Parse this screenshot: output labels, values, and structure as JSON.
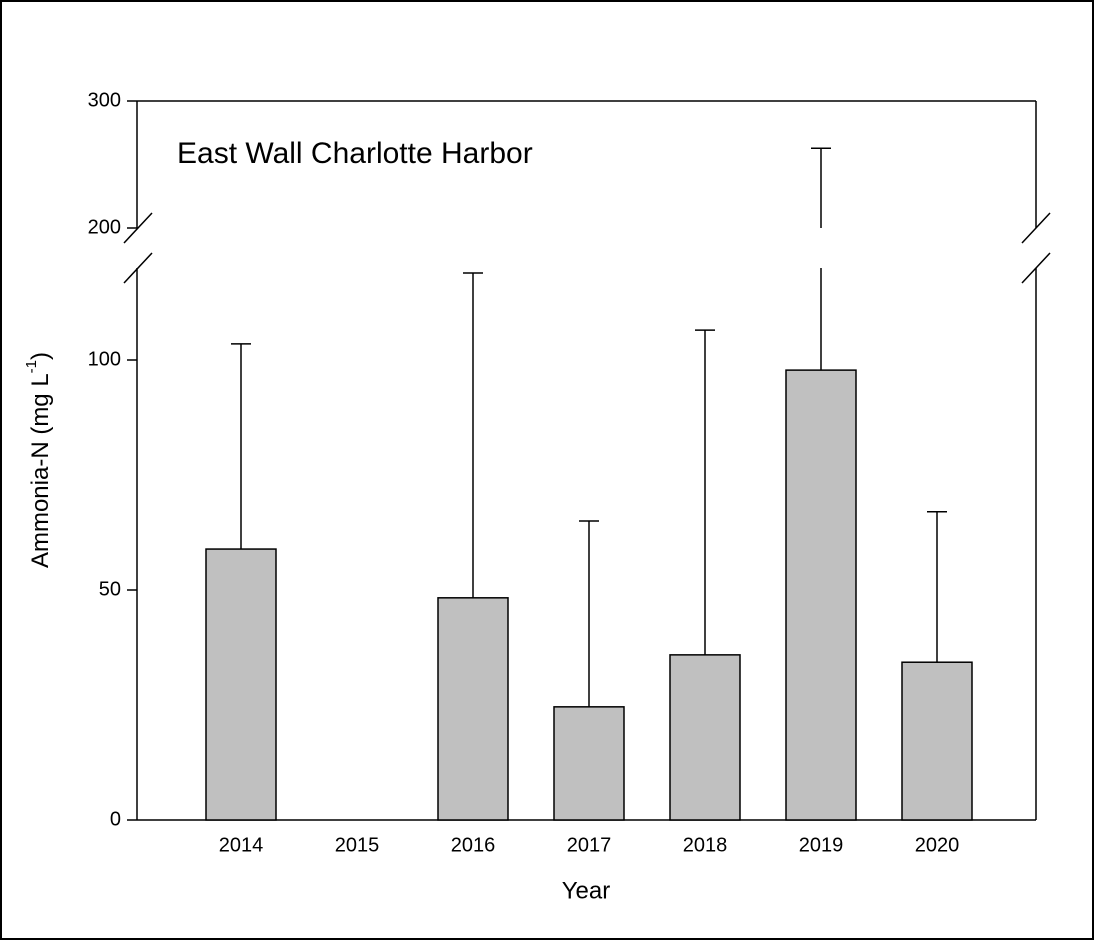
{
  "chart_data": {
    "type": "bar",
    "title": "East Wall Charlotte Harbor",
    "x_label": "Year",
    "y_label": [
      "Ammonia-N (mg L",
      "-1",
      ")"
    ],
    "categories": [
      "2014",
      "2015",
      "2016",
      "2017",
      "2018",
      "2019",
      "2020"
    ],
    "values": [
      58.9,
      null,
      48.3,
      24.6,
      35.9,
      97.8,
      34.3
    ],
    "errors": [
      44.6,
      null,
      70.6,
      40.4,
      70.6,
      165,
      32.7
    ],
    "color": "#c0c0c0",
    "ylim": [
      0,
      300
    ],
    "axis_break": [
      120,
      200
    ],
    "yticks": [
      0,
      50,
      100,
      200,
      300
    ],
    "grid": false
  }
}
